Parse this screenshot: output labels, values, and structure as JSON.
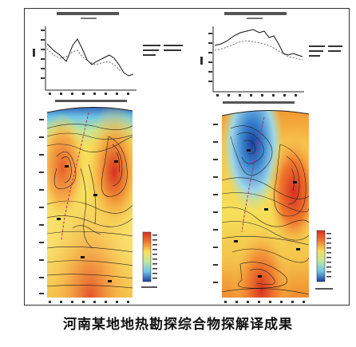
{
  "caption": "河南某地地热勘探综合物探解译成果",
  "colors": {
    "frame": "#333333",
    "deep_blue": "#1b3f9c",
    "light_blue": "#6cc3e8",
    "yellow": "#f6e05a",
    "orange": "#f29a3a",
    "red": "#d7301f",
    "contour": "#222222",
    "fault": "#d02060"
  },
  "panels": [
    {
      "id": "left"
    },
    {
      "id": "right"
    }
  ]
}
